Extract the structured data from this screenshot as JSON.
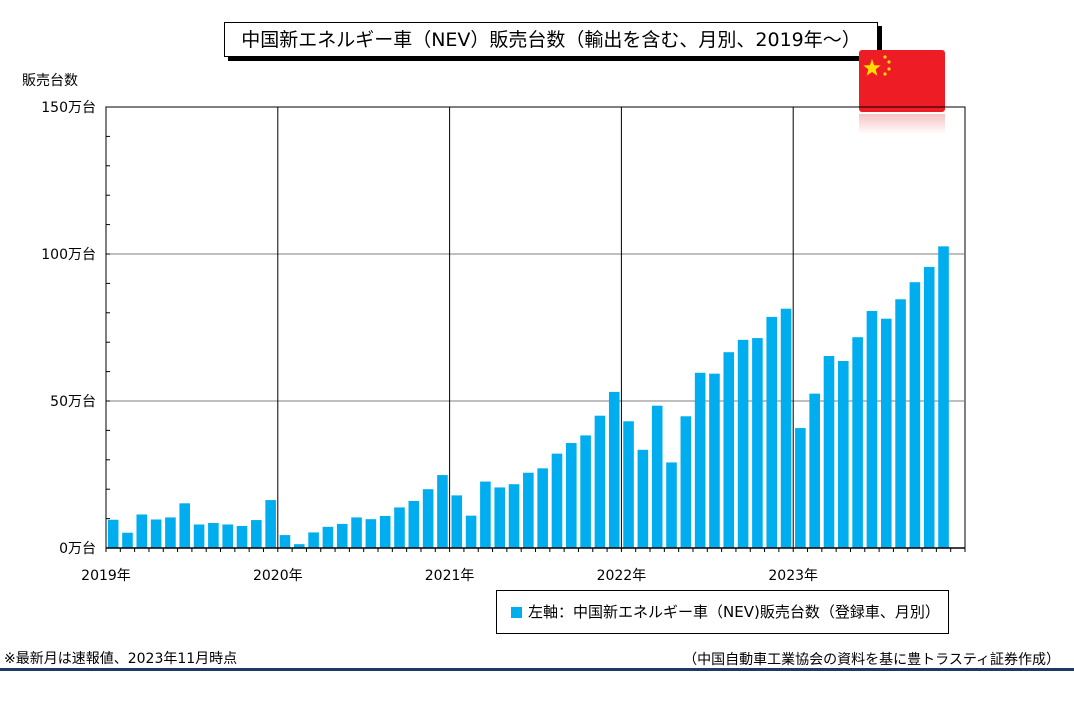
{
  "title": "中国新エネルギー車（NEV）販売台数（輸出を含む、月別、2019年～）",
  "y_unit_label": "販売台数",
  "legend_label": "左軸：中国新エネルギー車（NEV)販売台数（登録車、月別）",
  "note_left": "※最新月は速報値、2023年11月時点",
  "note_right": "（中国自動車工業協会の資料を基に豊トラスティ証券作成）",
  "colors": {
    "bar": "#00aeef",
    "flag_red": "#ee1c25",
    "flag_star": "#ffde00"
  },
  "chart_data": {
    "type": "bar",
    "unit": "万台",
    "ylim": [
      0,
      150
    ],
    "y_ticks": [
      {
        "value": 0,
        "label": "0万台"
      },
      {
        "value": 50,
        "label": "50万台"
      },
      {
        "value": 100,
        "label": "100万台"
      },
      {
        "value": 150,
        "label": "150万台"
      }
    ],
    "x_year_labels": [
      "2019年",
      "2020年",
      "2021年",
      "2022年",
      "2023年"
    ],
    "months_per_year": 12,
    "legend_position": "bottom-right",
    "grid": true,
    "series": [
      {
        "values": [
          9.6,
          5.2,
          11.4,
          9.7,
          10.4,
          15.2,
          8.0,
          8.5,
          8.0,
          7.5,
          9.5,
          16.3,
          4.4,
          1.3,
          5.3,
          7.2,
          8.2,
          10.4,
          9.8,
          10.9,
          13.8,
          16.0,
          20.0,
          24.8,
          17.9,
          11.0,
          22.6,
          20.6,
          21.7,
          25.6,
          27.1,
          32.1,
          35.7,
          38.3,
          45.0,
          53.1,
          43.1,
          33.4,
          48.4,
          29.1,
          44.8,
          59.6,
          59.3,
          66.6,
          70.8,
          71.4,
          78.6,
          81.4,
          40.8,
          52.5,
          65.3,
          63.6,
          71.7,
          80.6,
          78.0,
          84.6,
          90.4,
          95.6,
          102.6
        ]
      }
    ]
  }
}
